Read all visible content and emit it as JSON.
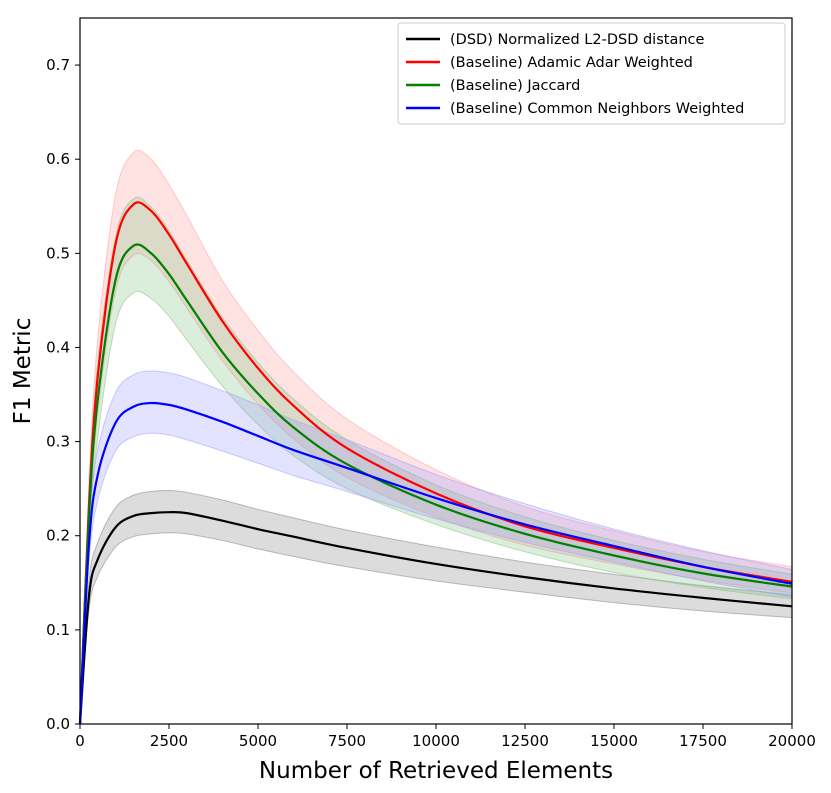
{
  "chart_data": {
    "type": "line",
    "title": "",
    "xlabel": "Number of Retrieved Elements",
    "ylabel": "F1 Metric",
    "xlim": [
      0,
      20000
    ],
    "ylim": [
      0,
      0.75
    ],
    "xticks": [
      0,
      2500,
      5000,
      7500,
      10000,
      12500,
      15000,
      17500,
      20000
    ],
    "yticks": [
      0.0,
      0.1,
      0.2,
      0.3,
      0.4,
      0.5,
      0.6,
      0.7
    ],
    "xtick_labels": [
      "0",
      "2500",
      "5000",
      "7500",
      "10000",
      "12500",
      "15000",
      "17500",
      "20000"
    ],
    "ytick_labels": [
      "0.0",
      "0.1",
      "0.2",
      "0.3",
      "0.4",
      "0.5",
      "0.6",
      "0.7"
    ],
    "grid": false,
    "legend_position": "top-right",
    "x": [
      0,
      250,
      500,
      1000,
      1500,
      2000,
      2500,
      3000,
      4000,
      5000,
      6000,
      7500,
      10000,
      12500,
      15000,
      17500,
      20000
    ],
    "series": [
      {
        "name": "(DSD) Normalized L2-DSD distance",
        "color": "#000000",
        "band_color": "#808080",
        "values": [
          0.0,
          0.135,
          0.175,
          0.209,
          0.221,
          0.224,
          0.225,
          0.224,
          0.216,
          0.207,
          0.199,
          0.187,
          0.17,
          0.156,
          0.144,
          0.134,
          0.125
        ],
        "lower": [
          0.0,
          0.12,
          0.157,
          0.188,
          0.199,
          0.202,
          0.203,
          0.202,
          0.195,
          0.186,
          0.178,
          0.167,
          0.152,
          0.14,
          0.129,
          0.12,
          0.113
        ],
        "upper": [
          0.0,
          0.15,
          0.193,
          0.23,
          0.243,
          0.247,
          0.248,
          0.246,
          0.238,
          0.228,
          0.219,
          0.206,
          0.188,
          0.172,
          0.159,
          0.147,
          0.137
        ]
      },
      {
        "name": "(Baseline) Adamic Adar Weighted",
        "color": "#ff0000",
        "band_color": "#ff9999",
        "values": [
          0.0,
          0.23,
          0.37,
          0.51,
          0.552,
          0.545,
          0.52,
          0.489,
          0.428,
          0.378,
          0.338,
          0.293,
          0.245,
          0.21,
          0.187,
          0.167,
          0.151
        ],
        "lower": [
          0.0,
          0.2,
          0.33,
          0.46,
          0.498,
          0.492,
          0.47,
          0.442,
          0.386,
          0.34,
          0.303,
          0.262,
          0.22,
          0.19,
          0.17,
          0.153,
          0.139
        ],
        "upper": [
          0.0,
          0.255,
          0.41,
          0.562,
          0.607,
          0.6,
          0.573,
          0.54,
          0.471,
          0.418,
          0.374,
          0.324,
          0.27,
          0.231,
          0.205,
          0.183,
          0.167
        ]
      },
      {
        "name": "(Baseline) Jaccard",
        "color": "#008000",
        "band_color": "#7fbf7f",
        "values": [
          0.0,
          0.22,
          0.345,
          0.472,
          0.508,
          0.5,
          0.478,
          0.45,
          0.395,
          0.351,
          0.315,
          0.276,
          0.233,
          0.202,
          0.179,
          0.16,
          0.146
        ],
        "lower": [
          0.0,
          0.195,
          0.305,
          0.425,
          0.458,
          0.452,
          0.433,
          0.408,
          0.359,
          0.318,
          0.285,
          0.25,
          0.212,
          0.183,
          0.161,
          0.145,
          0.133
        ],
        "upper": [
          0.0,
          0.245,
          0.385,
          0.518,
          0.558,
          0.549,
          0.524,
          0.493,
          0.432,
          0.384,
          0.345,
          0.302,
          0.254,
          0.22,
          0.195,
          0.175,
          0.159
        ]
      },
      {
        "name": "(Baseline) Common Neighbors Weighted",
        "color": "#0000ff",
        "band_color": "#9999ff",
        "values": [
          0.0,
          0.19,
          0.265,
          0.32,
          0.337,
          0.341,
          0.339,
          0.334,
          0.321,
          0.306,
          0.291,
          0.272,
          0.24,
          0.212,
          0.189,
          0.167,
          0.149
        ],
        "lower": [
          0.0,
          0.17,
          0.238,
          0.29,
          0.305,
          0.309,
          0.307,
          0.302,
          0.29,
          0.277,
          0.264,
          0.247,
          0.218,
          0.193,
          0.172,
          0.152,
          0.135
        ],
        "upper": [
          0.0,
          0.21,
          0.292,
          0.352,
          0.371,
          0.375,
          0.373,
          0.368,
          0.354,
          0.339,
          0.323,
          0.302,
          0.265,
          0.234,
          0.207,
          0.184,
          0.164
        ]
      }
    ]
  }
}
